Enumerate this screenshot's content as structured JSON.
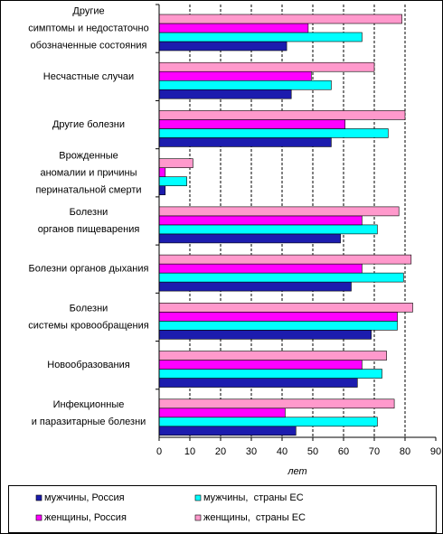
{
  "chart_data": {
    "type": "bar",
    "orientation": "horizontal",
    "x_label": "лет",
    "categories": [
      "Другие\nсимптомы и недостаточно\nобозначенные состояния",
      "Несчастные случаи",
      "Другие болезни",
      "Врожденные\nаномалии и причины\nперинатальной смерти",
      "Болезни\nорганов пищеварения",
      "Болезни органов дыхания",
      "Болезни\nсистемы кровообращения",
      "Новообразования",
      "Инфекционные\nи паразитарные болезни"
    ],
    "series": [
      {
        "name": "мужчины, Россия",
        "color": "#1c1cae",
        "values": [
          41.5,
          43,
          56,
          2,
          59,
          62.5,
          69,
          64.5,
          44.5
        ]
      },
      {
        "name": "мужчины,  страны ЕС",
        "color": "#00ffff",
        "values": [
          66,
          56,
          74.5,
          9,
          71,
          79.5,
          77.5,
          72.5,
          71
        ]
      },
      {
        "name": "женщины, Россия",
        "color": "#ff00ff",
        "values": [
          48.5,
          49.5,
          60.5,
          2,
          66,
          66,
          77.5,
          66,
          41
        ]
      },
      {
        "name": "женщины,  страны ЕС",
        "color": "#ff99cc",
        "values": [
          79,
          70,
          80,
          11,
          78,
          82,
          82.5,
          74,
          76.5
        ]
      }
    ],
    "xlim": [
      0,
      90
    ],
    "xticks": [
      0,
      10,
      20,
      30,
      40,
      50,
      60,
      70,
      80,
      90
    ],
    "grid": true
  }
}
